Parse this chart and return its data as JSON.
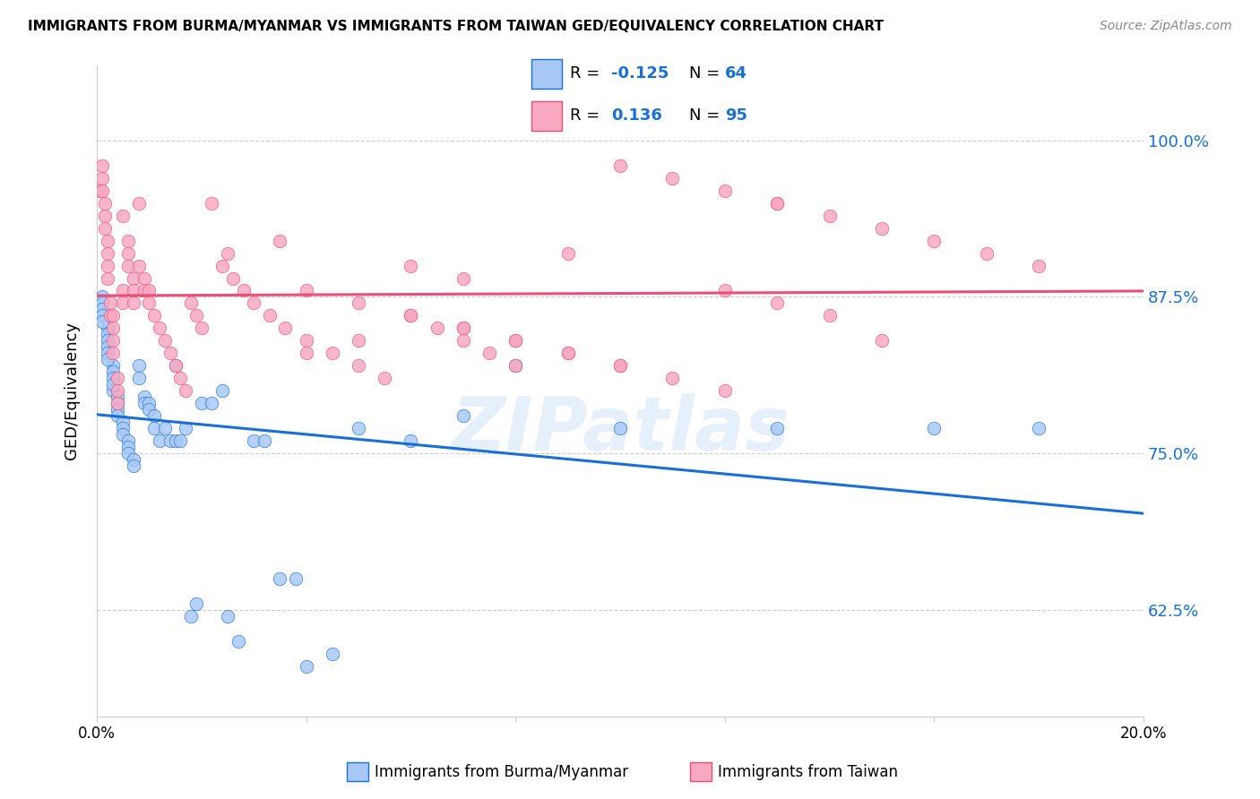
{
  "title": "IMMIGRANTS FROM BURMA/MYANMAR VS IMMIGRANTS FROM TAIWAN GED/EQUIVALENCY CORRELATION CHART",
  "source": "Source: ZipAtlas.com",
  "ylabel": "GED/Equivalency",
  "yticks": [
    0.625,
    0.75,
    0.875,
    1.0
  ],
  "ytick_labels": [
    "62.5%",
    "75.0%",
    "87.5%",
    "100.0%"
  ],
  "xlim": [
    0.0,
    0.2
  ],
  "ylim": [
    0.54,
    1.06
  ],
  "blue_color": "#a8c8f8",
  "pink_color": "#f8a8c0",
  "blue_line_color": "#1a6fd4",
  "pink_line_color": "#e8507a",
  "label_color": "#1a6fd4",
  "watermark": "ZIPatlas",
  "blue_r": "-0.125",
  "blue_n": "64",
  "pink_r": "0.136",
  "pink_n": "95",
  "blue_x": [
    0.001,
    0.001,
    0.001,
    0.001,
    0.002,
    0.002,
    0.002,
    0.002,
    0.002,
    0.003,
    0.003,
    0.003,
    0.003,
    0.004,
    0.004,
    0.004,
    0.004,
    0.005,
    0.005,
    0.005,
    0.006,
    0.006,
    0.006,
    0.007,
    0.007,
    0.008,
    0.008,
    0.009,
    0.009,
    0.01,
    0.01,
    0.011,
    0.011,
    0.012,
    0.013,
    0.014,
    0.015,
    0.015,
    0.016,
    0.017,
    0.018,
    0.019,
    0.02,
    0.022,
    0.024,
    0.025,
    0.027,
    0.03,
    0.032,
    0.035,
    0.038,
    0.04,
    0.045,
    0.05,
    0.06,
    0.07,
    0.08,
    0.1,
    0.13,
    0.16,
    0.18,
    0.001,
    0.002,
    0.003
  ],
  "blue_y": [
    0.875,
    0.87,
    0.865,
    0.86,
    0.85,
    0.845,
    0.84,
    0.835,
    0.83,
    0.82,
    0.815,
    0.81,
    0.8,
    0.795,
    0.79,
    0.785,
    0.78,
    0.775,
    0.77,
    0.765,
    0.76,
    0.755,
    0.75,
    0.745,
    0.74,
    0.82,
    0.81,
    0.795,
    0.79,
    0.79,
    0.785,
    0.78,
    0.77,
    0.76,
    0.77,
    0.76,
    0.82,
    0.76,
    0.76,
    0.77,
    0.62,
    0.63,
    0.79,
    0.79,
    0.8,
    0.62,
    0.6,
    0.76,
    0.76,
    0.65,
    0.65,
    0.58,
    0.59,
    0.77,
    0.76,
    0.78,
    0.82,
    0.77,
    0.77,
    0.77,
    0.77,
    0.855,
    0.825,
    0.805
  ],
  "pink_x": [
    0.0005,
    0.001,
    0.001,
    0.001,
    0.0015,
    0.0015,
    0.0015,
    0.002,
    0.002,
    0.002,
    0.002,
    0.0025,
    0.0025,
    0.003,
    0.003,
    0.003,
    0.003,
    0.004,
    0.004,
    0.004,
    0.005,
    0.005,
    0.005,
    0.006,
    0.006,
    0.006,
    0.007,
    0.007,
    0.007,
    0.008,
    0.008,
    0.009,
    0.009,
    0.01,
    0.01,
    0.011,
    0.012,
    0.013,
    0.014,
    0.015,
    0.016,
    0.017,
    0.018,
    0.019,
    0.02,
    0.022,
    0.024,
    0.026,
    0.028,
    0.03,
    0.033,
    0.036,
    0.04,
    0.045,
    0.05,
    0.055,
    0.06,
    0.065,
    0.07,
    0.075,
    0.08,
    0.09,
    0.1,
    0.11,
    0.12,
    0.13,
    0.14,
    0.15,
    0.16,
    0.17,
    0.18,
    0.15,
    0.05,
    0.04,
    0.035,
    0.025,
    0.06,
    0.07,
    0.12,
    0.13,
    0.14,
    0.07,
    0.08,
    0.09,
    0.1,
    0.04,
    0.05,
    0.06,
    0.07,
    0.08,
    0.09,
    0.1,
    0.11,
    0.12,
    0.13
  ],
  "pink_y": [
    0.96,
    0.98,
    0.97,
    0.96,
    0.95,
    0.94,
    0.93,
    0.92,
    0.91,
    0.9,
    0.89,
    0.87,
    0.86,
    0.86,
    0.85,
    0.84,
    0.83,
    0.81,
    0.8,
    0.79,
    0.94,
    0.88,
    0.87,
    0.92,
    0.91,
    0.9,
    0.89,
    0.88,
    0.87,
    0.95,
    0.9,
    0.89,
    0.88,
    0.88,
    0.87,
    0.86,
    0.85,
    0.84,
    0.83,
    0.82,
    0.81,
    0.8,
    0.87,
    0.86,
    0.85,
    0.95,
    0.9,
    0.89,
    0.88,
    0.87,
    0.86,
    0.85,
    0.84,
    0.83,
    0.82,
    0.81,
    0.86,
    0.85,
    0.84,
    0.83,
    0.82,
    0.91,
    0.98,
    0.97,
    0.96,
    0.95,
    0.94,
    0.93,
    0.92,
    0.91,
    0.9,
    0.84,
    0.84,
    0.83,
    0.92,
    0.91,
    0.9,
    0.89,
    0.88,
    0.87,
    0.86,
    0.85,
    0.84,
    0.83,
    0.82,
    0.88,
    0.87,
    0.86,
    0.85,
    0.84,
    0.83,
    0.82,
    0.81,
    0.8,
    0.95
  ]
}
